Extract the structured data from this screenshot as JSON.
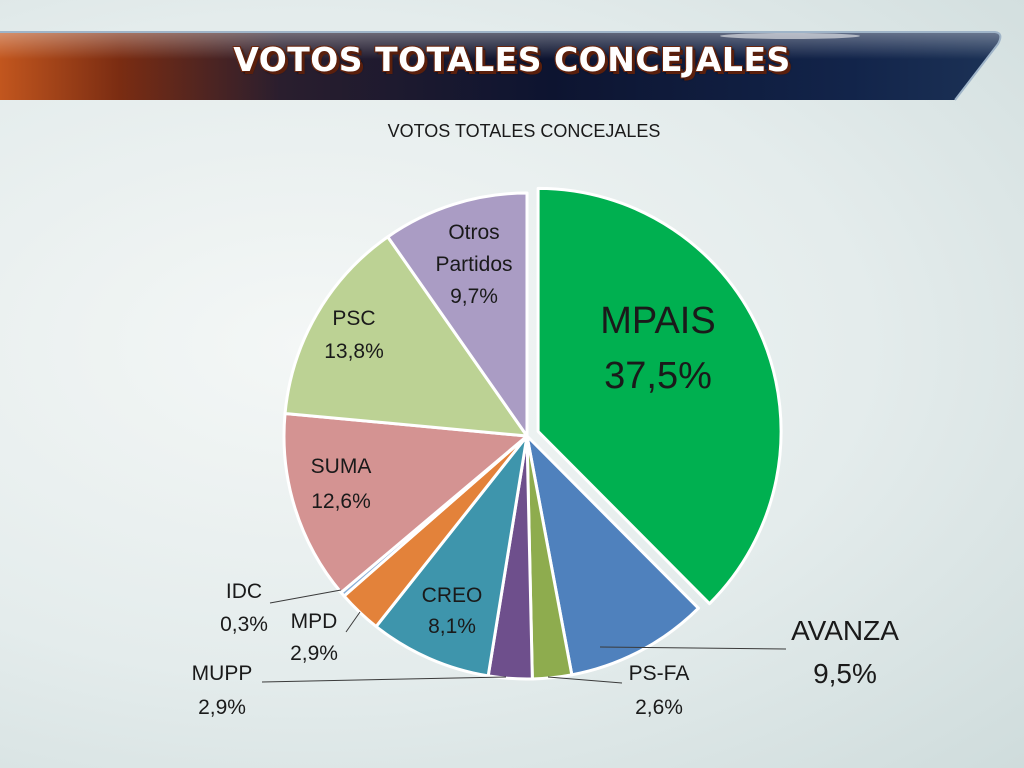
{
  "slide": {
    "title": "VOTOS TOTALES CONCEJALES"
  },
  "chart_data": {
    "type": "pie",
    "title": "VOTOS TOTALES CONCEJALES",
    "slices": [
      {
        "label": "MPAIS",
        "value": 37.5,
        "value_text": "37,5%",
        "color": "#00b050",
        "exploded": true
      },
      {
        "label": "AVANZA",
        "value": 9.5,
        "value_text": "9,5%",
        "color": "#4f81bd"
      },
      {
        "label": "PS-FA",
        "value": 2.6,
        "value_text": "2,6%",
        "color": "#8eac4e"
      },
      {
        "label": "MUPP",
        "value": 2.9,
        "value_text": "2,9%",
        "color": "#6e4f8c"
      },
      {
        "label": "CREO",
        "value": 8.1,
        "value_text": "8,1%",
        "color": "#3e95ac"
      },
      {
        "label": "MPD",
        "value": 2.9,
        "value_text": "2,9%",
        "color": "#e3823a"
      },
      {
        "label": "IDC",
        "value": 0.3,
        "value_text": "0,3%",
        "color": "#8aaed6"
      },
      {
        "label": "SUMA",
        "value": 12.6,
        "value_text": "12,6%",
        "color": "#d49392"
      },
      {
        "label": "PSC",
        "value": 13.8,
        "value_text": "13,8%",
        "color": "#bcd294"
      },
      {
        "label": "Otros Partidos",
        "value": 9.7,
        "value_text": "9,7%",
        "color": "#aa9cc4"
      }
    ]
  }
}
